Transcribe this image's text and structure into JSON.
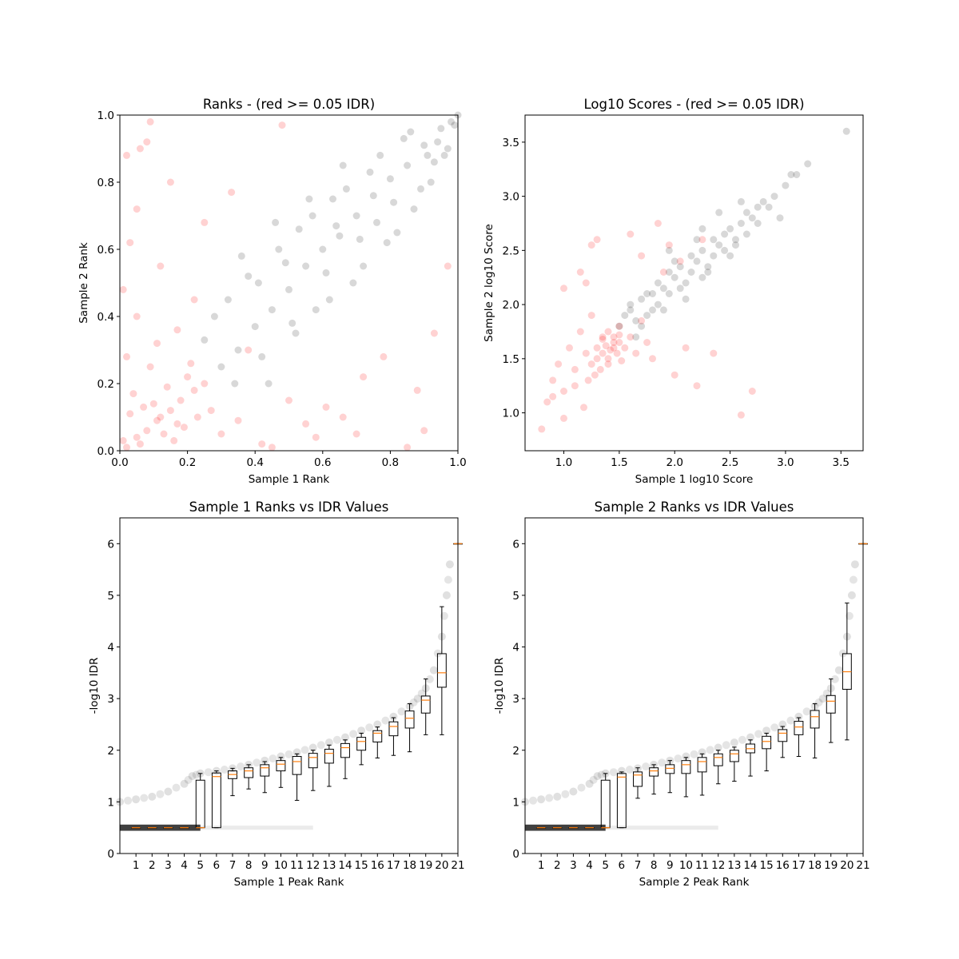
{
  "chart_data": [
    {
      "type": "scatter",
      "title": "Ranks - (red >= 0.05 IDR)",
      "xlabel": "Sample 1 Rank",
      "ylabel": "Sample 2 Rank",
      "xlim": [
        0,
        1
      ],
      "ylim": [
        0,
        1
      ],
      "xticks": [
        "0.0",
        "0.2",
        "0.4",
        "0.6",
        "0.8",
        "1.0"
      ],
      "yticks": [
        "0.0",
        "0.2",
        "0.4",
        "0.6",
        "0.8",
        "1.0"
      ],
      "grid": false,
      "series": [
        {
          "color": "#ff0000",
          "alpha": 0.08,
          "x": [
            0.02,
            0.05,
            0.08,
            0.11,
            0.15,
            0.18,
            0.22,
            0.25,
            0.03,
            0.06,
            0.1,
            0.13,
            0.17,
            0.2,
            0.04,
            0.09,
            0.12,
            0.16,
            0.01,
            0.07,
            0.14,
            0.19,
            0.23,
            0.02,
            0.11,
            0.05,
            0.21,
            0.27,
            0.3,
            0.35,
            0.42,
            0.55,
            0.61,
            0.7,
            0.78,
            0.88,
            0.93,
            0.97,
            0.12,
            0.05,
            0.08,
            0.02,
            0.15,
            0.45,
            0.58,
            0.66,
            0.85,
            0.03,
            0.01,
            0.22,
            0.38,
            0.5,
            0.25,
            0.48,
            0.72,
            0.9,
            0.33,
            0.06,
            0.09,
            0.17
          ],
          "y": [
            0.01,
            0.04,
            0.06,
            0.09,
            0.12,
            0.15,
            0.18,
            0.2,
            0.11,
            0.02,
            0.14,
            0.05,
            0.08,
            0.22,
            0.17,
            0.25,
            0.1,
            0.03,
            0.03,
            0.13,
            0.19,
            0.07,
            0.1,
            0.28,
            0.32,
            0.4,
            0.26,
            0.12,
            0.05,
            0.09,
            0.02,
            0.08,
            0.13,
            0.05,
            0.28,
            0.18,
            0.35,
            0.55,
            0.55,
            0.72,
            0.92,
            0.88,
            0.8,
            0.01,
            0.04,
            0.1,
            0.01,
            0.62,
            0.48,
            0.45,
            0.3,
            0.15,
            0.68,
            0.97,
            0.22,
            0.06,
            0.77,
            0.9,
            0.98,
            0.36
          ]
        },
        {
          "color": "#000000",
          "alpha": 0.07,
          "x": [
            0.3,
            0.35,
            0.4,
            0.45,
            0.5,
            0.55,
            0.6,
            0.65,
            0.7,
            0.75,
            0.8,
            0.85,
            0.9,
            0.95,
            0.98,
            1.0,
            0.32,
            0.38,
            0.42,
            0.47,
            0.52,
            0.57,
            0.62,
            0.67,
            0.72,
            0.77,
            0.82,
            0.87,
            0.92,
            0.97,
            0.25,
            0.28,
            0.36,
            0.44,
            0.53,
            0.58,
            0.63,
            0.69,
            0.74,
            0.79,
            0.84,
            0.89,
            0.93,
            0.96,
            0.99,
            0.41,
            0.46,
            0.51,
            0.56,
            0.61,
            0.66,
            0.71,
            0.76,
            0.81,
            0.86,
            0.91,
            0.94,
            0.34,
            0.49,
            0.64
          ],
          "y": [
            0.25,
            0.3,
            0.37,
            0.42,
            0.48,
            0.55,
            0.6,
            0.64,
            0.7,
            0.76,
            0.81,
            0.85,
            0.91,
            0.96,
            0.98,
            1.0,
            0.45,
            0.52,
            0.28,
            0.6,
            0.35,
            0.7,
            0.45,
            0.78,
            0.55,
            0.88,
            0.65,
            0.72,
            0.8,
            0.9,
            0.33,
            0.4,
            0.58,
            0.2,
            0.66,
            0.42,
            0.75,
            0.5,
            0.83,
            0.62,
            0.93,
            0.78,
            0.86,
            0.88,
            0.97,
            0.5,
            0.68,
            0.38,
            0.75,
            0.53,
            0.85,
            0.63,
            0.68,
            0.74,
            0.95,
            0.88,
            0.92,
            0.2,
            0.56,
            0.67
          ]
        }
      ]
    },
    {
      "type": "scatter",
      "title": "Log10 Scores - (red >= 0.05 IDR)",
      "xlabel": "Sample 1 log10 Score",
      "ylabel": "Sample 2 log10 Score",
      "xlim": [
        0.65,
        3.7
      ],
      "ylim": [
        0.65,
        3.75
      ],
      "xticks": [
        "1.0",
        "1.5",
        "2.0",
        "2.5",
        "3.0",
        "3.5"
      ],
      "yticks": [
        "1.0",
        "1.5",
        "2.0",
        "2.5",
        "3.0",
        "3.5"
      ],
      "grid": false,
      "series": [
        {
          "color": "#ff0000",
          "alpha": 0.08,
          "x": [
            0.8,
            0.85,
            0.9,
            0.95,
            1.0,
            1.05,
            1.1,
            1.15,
            1.2,
            1.25,
            1.3,
            1.35,
            1.4,
            1.45,
            1.5,
            1.55,
            1.6,
            1.65,
            1.7,
            1.75,
            1.3,
            1.35,
            1.4,
            1.45,
            1.5,
            1.25,
            1.4,
            1.45,
            1.35,
            1.5,
            0.9,
            1.0,
            1.1,
            1.2,
            1.8,
            1.9,
            2.0,
            2.1,
            2.2,
            2.35,
            2.6,
            2.7,
            1.0,
            1.15,
            1.25,
            1.3,
            1.6,
            1.7,
            1.85,
            1.95,
            2.05,
            2.25,
            1.42,
            1.38,
            1.48,
            1.52,
            1.33,
            1.28,
            1.22,
            1.18
          ],
          "y": [
            0.85,
            1.1,
            1.3,
            1.45,
            1.2,
            1.6,
            1.4,
            1.75,
            1.55,
            1.9,
            1.5,
            1.7,
            1.45,
            1.65,
            1.8,
            1.6,
            1.7,
            1.55,
            1.85,
            1.65,
            1.6,
            1.55,
            1.75,
            1.7,
            1.65,
            1.45,
            1.5,
            1.6,
            1.68,
            1.72,
            1.15,
            0.95,
            1.25,
            2.2,
            1.5,
            2.3,
            1.35,
            1.6,
            1.25,
            1.55,
            0.98,
            1.2,
            2.15,
            2.3,
            2.55,
            2.6,
            2.65,
            2.45,
            2.75,
            2.55,
            2.4,
            2.6,
            1.58,
            1.62,
            1.55,
            1.48,
            1.4,
            1.35,
            1.3,
            1.05
          ]
        },
        {
          "color": "#000000",
          "alpha": 0.07,
          "x": [
            1.5,
            1.55,
            1.6,
            1.65,
            1.7,
            1.75,
            1.8,
            1.85,
            1.9,
            1.95,
            2.0,
            2.05,
            2.1,
            2.15,
            2.2,
            2.25,
            2.3,
            2.35,
            2.4,
            2.45,
            2.5,
            2.55,
            2.6,
            2.65,
            2.7,
            2.75,
            2.8,
            2.9,
            3.0,
            3.1,
            3.2,
            3.55,
            1.6,
            1.7,
            1.8,
            1.9,
            2.0,
            2.1,
            2.2,
            2.3,
            2.4,
            2.5,
            1.75,
            1.85,
            1.95,
            2.05,
            2.15,
            2.25,
            2.35,
            2.45,
            2.55,
            2.65,
            2.75,
            2.85,
            2.95,
            1.65,
            1.95,
            2.25,
            2.6,
            3.05
          ],
          "y": [
            1.8,
            1.9,
            1.95,
            1.85,
            2.05,
            2.1,
            1.95,
            2.2,
            2.15,
            2.3,
            2.25,
            2.35,
            2.2,
            2.45,
            2.4,
            2.5,
            2.35,
            2.6,
            2.55,
            2.65,
            2.7,
            2.6,
            2.75,
            2.85,
            2.8,
            2.9,
            2.95,
            3.0,
            3.1,
            3.2,
            3.3,
            3.6,
            2.0,
            1.8,
            2.1,
            1.95,
            2.4,
            2.05,
            2.6,
            2.3,
            2.85,
            2.45,
            1.9,
            2.0,
            2.1,
            2.15,
            2.3,
            2.25,
            2.45,
            2.5,
            2.55,
            2.65,
            2.75,
            2.9,
            2.8,
            1.7,
            2.5,
            2.7,
            2.95,
            3.2
          ]
        }
      ]
    },
    {
      "type": "box",
      "title": "Sample 1 Ranks vs IDR Values",
      "xlabel": "Sample 1 Peak Rank",
      "ylabel": "-log10 IDR",
      "xlim": [
        0,
        21
      ],
      "ylim": [
        0,
        6.5
      ],
      "categories": [
        "1",
        "2",
        "3",
        "4",
        "5",
        "6",
        "7",
        "8",
        "9",
        "10",
        "11",
        "12",
        "13",
        "14",
        "15",
        "16",
        "17",
        "18",
        "19",
        "20",
        "21"
      ],
      "yticks": [
        "0",
        "1",
        "2",
        "3",
        "4",
        "5",
        "6"
      ],
      "grid": false,
      "curve": {
        "x": [
          0,
          1,
          2,
          3,
          4,
          4.5,
          5,
          6,
          7,
          8,
          9,
          10,
          11,
          12,
          13,
          14,
          15,
          16,
          17,
          18,
          18.5,
          19,
          19.5,
          20,
          20.3,
          20.5
        ],
        "y": [
          1.0,
          1.05,
          1.1,
          1.2,
          1.35,
          1.5,
          1.55,
          1.6,
          1.65,
          1.72,
          1.8,
          1.88,
          1.96,
          2.05,
          2.15,
          2.25,
          2.38,
          2.5,
          2.65,
          2.85,
          3.0,
          3.2,
          3.55,
          4.2,
          5.0,
          5.6
        ]
      },
      "boxes": [
        {
          "q1": 0.5,
          "median": 0.5,
          "q3": 0.5,
          "whislo": 0.5,
          "whishi": 0.5
        },
        {
          "q1": 0.5,
          "median": 0.5,
          "q3": 0.5,
          "whislo": 0.5,
          "whishi": 0.5
        },
        {
          "q1": 0.5,
          "median": 0.5,
          "q3": 0.5,
          "whislo": 0.5,
          "whishi": 0.5
        },
        {
          "q1": 0.5,
          "median": 0.5,
          "q3": 0.5,
          "whislo": 0.5,
          "whishi": 0.5
        },
        {
          "q1": 0.5,
          "median": 0.5,
          "q3": 1.42,
          "whislo": 0.5,
          "whishi": 1.55
        },
        {
          "q1": 0.5,
          "median": 1.49,
          "q3": 1.56,
          "whislo": 0.5,
          "whishi": 1.6
        },
        {
          "q1": 1.45,
          "median": 1.53,
          "q3": 1.6,
          "whislo": 1.12,
          "whishi": 1.65
        },
        {
          "q1": 1.47,
          "median": 1.6,
          "q3": 1.66,
          "whislo": 1.25,
          "whishi": 1.72
        },
        {
          "q1": 1.5,
          "median": 1.66,
          "q3": 1.72,
          "whislo": 1.18,
          "whishi": 1.78
        },
        {
          "q1": 1.6,
          "median": 1.73,
          "q3": 1.8,
          "whislo": 1.28,
          "whishi": 1.86
        },
        {
          "q1": 1.53,
          "median": 1.78,
          "q3": 1.88,
          "whislo": 1.03,
          "whishi": 1.93
        },
        {
          "q1": 1.66,
          "median": 1.86,
          "q3": 1.94,
          "whislo": 1.22,
          "whishi": 2.0
        },
        {
          "q1": 1.75,
          "median": 1.94,
          "q3": 2.02,
          "whislo": 1.3,
          "whishi": 2.1
        },
        {
          "q1": 1.86,
          "median": 2.05,
          "q3": 2.13,
          "whislo": 1.45,
          "whishi": 2.2
        },
        {
          "q1": 2.0,
          "median": 2.17,
          "q3": 2.25,
          "whislo": 1.72,
          "whishi": 2.33
        },
        {
          "q1": 2.16,
          "median": 2.33,
          "q3": 2.38,
          "whislo": 1.85,
          "whishi": 2.45
        },
        {
          "q1": 2.28,
          "median": 2.46,
          "q3": 2.55,
          "whislo": 1.9,
          "whishi": 2.63
        },
        {
          "q1": 2.43,
          "median": 2.62,
          "q3": 2.76,
          "whislo": 1.97,
          "whishi": 2.9
        },
        {
          "q1": 2.72,
          "median": 2.97,
          "q3": 3.05,
          "whislo": 2.3,
          "whishi": 3.38
        },
        {
          "q1": 3.22,
          "median": 3.5,
          "q3": 3.87,
          "whislo": 2.3,
          "whishi": 4.78
        },
        {
          "q1": 6.0,
          "median": 6.0,
          "q3": 6.0,
          "whislo": 6.0,
          "whishi": 6.0
        }
      ]
    },
    {
      "type": "box",
      "title": "Sample 2 Ranks vs IDR Values",
      "xlabel": "Sample 2 Peak Rank",
      "ylabel": "-log10 IDR",
      "xlim": [
        0,
        21
      ],
      "ylim": [
        0,
        6.5
      ],
      "categories": [
        "1",
        "2",
        "3",
        "4",
        "5",
        "6",
        "7",
        "8",
        "9",
        "10",
        "11",
        "12",
        "13",
        "14",
        "15",
        "16",
        "17",
        "18",
        "19",
        "20",
        "21"
      ],
      "yticks": [
        "0",
        "1",
        "2",
        "3",
        "4",
        "5",
        "6"
      ],
      "grid": false,
      "curve": {
        "x": [
          0,
          1,
          2,
          3,
          4,
          4.5,
          5,
          6,
          7,
          8,
          9,
          10,
          11,
          12,
          13,
          14,
          15,
          16,
          17,
          18,
          18.5,
          19,
          19.5,
          20,
          20.3,
          20.5
        ],
        "y": [
          1.0,
          1.05,
          1.1,
          1.2,
          1.35,
          1.5,
          1.55,
          1.6,
          1.65,
          1.72,
          1.8,
          1.88,
          1.96,
          2.05,
          2.15,
          2.25,
          2.38,
          2.5,
          2.65,
          2.85,
          3.0,
          3.2,
          3.55,
          4.2,
          5.0,
          5.6
        ]
      },
      "boxes": [
        {
          "q1": 0.5,
          "median": 0.5,
          "q3": 0.5,
          "whislo": 0.5,
          "whishi": 0.5
        },
        {
          "q1": 0.5,
          "median": 0.5,
          "q3": 0.5,
          "whislo": 0.5,
          "whishi": 0.5
        },
        {
          "q1": 0.5,
          "median": 0.5,
          "q3": 0.5,
          "whislo": 0.5,
          "whishi": 0.5
        },
        {
          "q1": 0.5,
          "median": 0.5,
          "q3": 0.5,
          "whislo": 0.5,
          "whishi": 0.5
        },
        {
          "q1": 0.5,
          "median": 0.5,
          "q3": 1.42,
          "whislo": 0.5,
          "whishi": 1.55
        },
        {
          "q1": 0.5,
          "median": 1.48,
          "q3": 1.55,
          "whislo": 0.5,
          "whishi": 1.58
        },
        {
          "q1": 1.3,
          "median": 1.52,
          "q3": 1.58,
          "whislo": 1.07,
          "whishi": 1.66
        },
        {
          "q1": 1.5,
          "median": 1.6,
          "q3": 1.66,
          "whislo": 1.15,
          "whishi": 1.72
        },
        {
          "q1": 1.55,
          "median": 1.65,
          "q3": 1.72,
          "whislo": 1.18,
          "whishi": 1.8
        },
        {
          "q1": 1.55,
          "median": 1.72,
          "q3": 1.8,
          "whislo": 1.1,
          "whishi": 1.86
        },
        {
          "q1": 1.58,
          "median": 1.78,
          "q3": 1.86,
          "whislo": 1.13,
          "whishi": 1.93
        },
        {
          "q1": 1.7,
          "median": 1.86,
          "q3": 1.93,
          "whislo": 1.35,
          "whishi": 2.0
        },
        {
          "q1": 1.78,
          "median": 1.93,
          "q3": 2.0,
          "whislo": 1.4,
          "whishi": 2.06
        },
        {
          "q1": 1.95,
          "median": 2.03,
          "q3": 2.12,
          "whislo": 1.5,
          "whishi": 2.2
        },
        {
          "q1": 2.03,
          "median": 2.17,
          "q3": 2.27,
          "whislo": 1.6,
          "whishi": 2.33
        },
        {
          "q1": 2.17,
          "median": 2.33,
          "q3": 2.4,
          "whislo": 1.86,
          "whishi": 2.46
        },
        {
          "q1": 2.3,
          "median": 2.45,
          "q3": 2.56,
          "whislo": 1.88,
          "whishi": 2.63
        },
        {
          "q1": 2.43,
          "median": 2.65,
          "q3": 2.77,
          "whislo": 1.85,
          "whishi": 2.9
        },
        {
          "q1": 2.72,
          "median": 2.95,
          "q3": 3.06,
          "whislo": 2.15,
          "whishi": 3.38
        },
        {
          "q1": 3.18,
          "median": 3.52,
          "q3": 3.87,
          "whislo": 2.2,
          "whishi": 4.85
        },
        {
          "q1": 6.0,
          "median": 6.0,
          "q3": 6.0,
          "whislo": 6.0,
          "whishi": 6.0
        }
      ]
    }
  ]
}
